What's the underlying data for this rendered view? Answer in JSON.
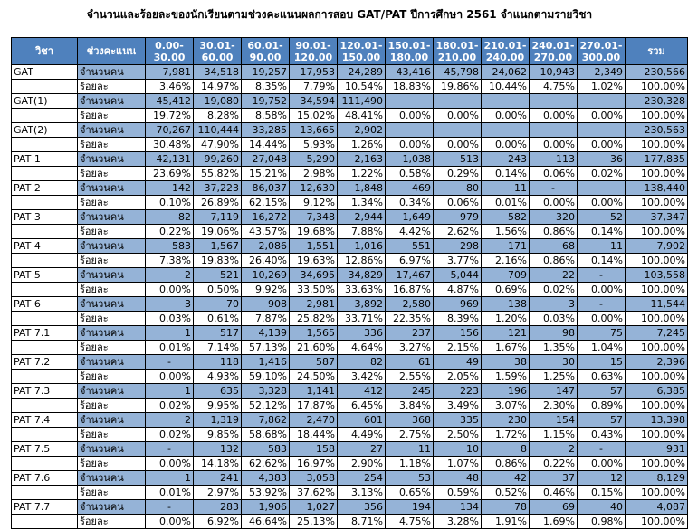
{
  "title": "จำนวนและร้อยละของนักเรียนตามช่วงคะแนนผลการสอบ GAT/PAT ปีการศึกษา 2561 จำแนกตามรายวิชา",
  "headers": [
    "วิชา",
    "ช่วงคะแนน",
    "0.00-\n30.00",
    "30.01-\n60.00",
    "60.01-\n90.00",
    "90.01-\n120.00",
    "120.01-\n150.00",
    "150.01-\n180.00",
    "180.01-\n210.00",
    "210.01-\n240.00",
    "240.01-\n270.00",
    "270.01-\n300.00",
    "รวม"
  ],
  "count_label": "จำนวนคน",
  "pct_label": "ร้อยละ",
  "rows": [
    {
      "subject": "GAT",
      "counts": [
        "7,981",
        "34,518",
        "19,257",
        "17,953",
        "24,289",
        "43,416",
        "45,798",
        "24,062",
        "10,943",
        "2,349",
        "230,566"
      ],
      "pcts": [
        "3.46%",
        "14.97%",
        "8.35%",
        "7.79%",
        "10.54%",
        "18.83%",
        "19.86%",
        "10.44%",
        "4.75%",
        "1.02%",
        "100.00%"
      ]
    },
    {
      "subject": "GAT(1)",
      "counts": [
        "45,412",
        "19,080",
        "19,752",
        "34,594",
        "111,490",
        "",
        "",
        "",
        "",
        "",
        "230,328"
      ],
      "pcts": [
        "19.72%",
        "8.28%",
        "8.58%",
        "15.02%",
        "48.41%",
        "0.00%",
        "0.00%",
        "0.00%",
        "0.00%",
        "0.00%",
        "100.00%"
      ]
    },
    {
      "subject": "GAT(2)",
      "counts": [
        "70,267",
        "110,444",
        "33,285",
        "13,665",
        "2,902",
        "",
        "",
        "",
        "",
        "",
        "230,563"
      ],
      "pcts": [
        "30.48%",
        "47.90%",
        "14.44%",
        "5.93%",
        "1.26%",
        "0.00%",
        "0.00%",
        "0.00%",
        "0.00%",
        "0.00%",
        "100.00%"
      ]
    },
    {
      "subject": "PAT 1",
      "counts": [
        "42,131",
        "99,260",
        "27,048",
        "5,290",
        "2,163",
        "1,038",
        "513",
        "243",
        "113",
        "36",
        "177,835"
      ],
      "pcts": [
        "23.69%",
        "55.82%",
        "15.21%",
        "2.98%",
        "1.22%",
        "0.58%",
        "0.29%",
        "0.14%",
        "0.06%",
        "0.02%",
        "100.00%"
      ]
    },
    {
      "subject": "PAT 2",
      "counts": [
        "142",
        "37,223",
        "86,037",
        "12,630",
        "1,848",
        "469",
        "80",
        "11",
        "-",
        "",
        "138,440"
      ],
      "pcts": [
        "0.10%",
        "26.89%",
        "62.15%",
        "9.12%",
        "1.34%",
        "0.34%",
        "0.06%",
        "0.01%",
        "0.00%",
        "0.00%",
        "100.00%"
      ]
    },
    {
      "subject": "PAT 3",
      "counts": [
        "82",
        "7,119",
        "16,272",
        "7,348",
        "2,944",
        "1,649",
        "979",
        "582",
        "320",
        "52",
        "37,347"
      ],
      "pcts": [
        "0.22%",
        "19.06%",
        "43.57%",
        "19.68%",
        "7.88%",
        "4.42%",
        "2.62%",
        "1.56%",
        "0.86%",
        "0.14%",
        "100.00%"
      ]
    },
    {
      "subject": "PAT 4",
      "counts": [
        "583",
        "1,567",
        "2,086",
        "1,551",
        "1,016",
        "551",
        "298",
        "171",
        "68",
        "11",
        "7,902"
      ],
      "pcts": [
        "7.38%",
        "19.83%",
        "26.40%",
        "19.63%",
        "12.86%",
        "6.97%",
        "3.77%",
        "2.16%",
        "0.86%",
        "0.14%",
        "100.00%"
      ]
    },
    {
      "subject": "PAT 5",
      "counts": [
        "2",
        "521",
        "10,269",
        "34,695",
        "34,829",
        "17,467",
        "5,044",
        "709",
        "22",
        "-",
        "103,558"
      ],
      "pcts": [
        "0.00%",
        "0.50%",
        "9.92%",
        "33.50%",
        "33.63%",
        "16.87%",
        "4.87%",
        "0.69%",
        "0.02%",
        "0.00%",
        "100.00%"
      ]
    },
    {
      "subject": "PAT 6",
      "counts": [
        "3",
        "70",
        "908",
        "2,981",
        "3,892",
        "2,580",
        "969",
        "138",
        "3",
        "-",
        "11,544"
      ],
      "pcts": [
        "0.03%",
        "0.61%",
        "7.87%",
        "25.82%",
        "33.71%",
        "22.35%",
        "8.39%",
        "1.20%",
        "0.03%",
        "0.00%",
        "100.00%"
      ]
    },
    {
      "subject": "PAT 7.1",
      "counts": [
        "1",
        "517",
        "4,139",
        "1,565",
        "336",
        "237",
        "156",
        "121",
        "98",
        "75",
        "7,245"
      ],
      "pcts": [
        "0.01%",
        "7.14%",
        "57.13%",
        "21.60%",
        "4.64%",
        "3.27%",
        "2.15%",
        "1.67%",
        "1.35%",
        "1.04%",
        "100.00%"
      ]
    },
    {
      "subject": "PAT 7.2",
      "counts": [
        "-",
        "118",
        "1,416",
        "587",
        "82",
        "61",
        "49",
        "38",
        "30",
        "15",
        "2,396"
      ],
      "pcts": [
        "0.00%",
        "4.93%",
        "59.10%",
        "24.50%",
        "3.42%",
        "2.55%",
        "2.05%",
        "1.59%",
        "1.25%",
        "0.63%",
        "100.00%"
      ]
    },
    {
      "subject": "PAT 7.3",
      "counts": [
        "1",
        "635",
        "3,328",
        "1,141",
        "412",
        "245",
        "223",
        "196",
        "147",
        "57",
        "6,385"
      ],
      "pcts": [
        "0.02%",
        "9.95%",
        "52.12%",
        "17.87%",
        "6.45%",
        "3.84%",
        "3.49%",
        "3.07%",
        "2.30%",
        "0.89%",
        "100.00%"
      ]
    },
    {
      "subject": "PAT 7.4",
      "counts": [
        "2",
        "1,319",
        "7,862",
        "2,470",
        "601",
        "368",
        "335",
        "230",
        "154",
        "57",
        "13,398"
      ],
      "pcts": [
        "0.02%",
        "9.85%",
        "58.68%",
        "18.44%",
        "4.49%",
        "2.75%",
        "2.50%",
        "1.72%",
        "1.15%",
        "0.43%",
        "100.00%"
      ]
    },
    {
      "subject": "PAT 7.5",
      "counts": [
        "-",
        "132",
        "583",
        "158",
        "27",
        "11",
        "10",
        "8",
        "2",
        "-",
        "931"
      ],
      "pcts": [
        "0.00%",
        "14.18%",
        "62.62%",
        "16.97%",
        "2.90%",
        "1.18%",
        "1.07%",
        "0.86%",
        "0.22%",
        "0.00%",
        "100.00%"
      ]
    },
    {
      "subject": "PAT 7.6",
      "counts": [
        "1",
        "241",
        "4,383",
        "3,058",
        "254",
        "53",
        "48",
        "42",
        "37",
        "12",
        "8,129"
      ],
      "pcts": [
        "0.01%",
        "2.97%",
        "53.92%",
        "37.62%",
        "3.13%",
        "0.65%",
        "0.59%",
        "0.52%",
        "0.46%",
        "0.15%",
        "100.00%"
      ]
    },
    {
      "subject": "PAT 7.7",
      "counts": [
        "-",
        "283",
        "1,906",
        "1,027",
        "356",
        "194",
        "134",
        "78",
        "69",
        "40",
        "4,087"
      ],
      "pcts": [
        "0.00%",
        "6.92%",
        "46.64%",
        "25.13%",
        "8.71%",
        "4.75%",
        "3.28%",
        "1.91%",
        "1.69%",
        "0.98%",
        "100.00%"
      ]
    }
  ],
  "colors": {
    "header_bg": "#4f81bd",
    "count_row_bg": "#95b3d7",
    "header_text": "#ffffff"
  }
}
